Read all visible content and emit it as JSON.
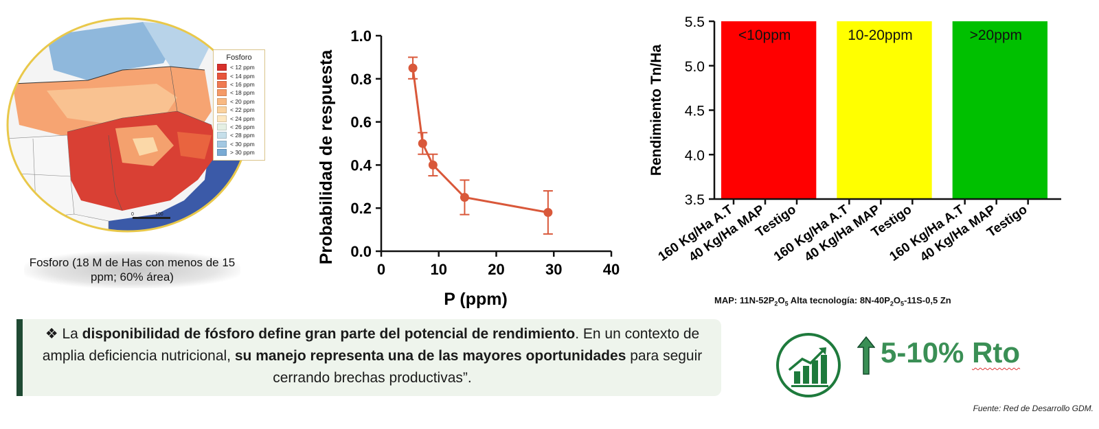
{
  "map": {
    "legend_title": "Fosforo",
    "legend": [
      {
        "label": "< 12 ppm",
        "color": "#d7302b"
      },
      {
        "label": "< 14 ppm",
        "color": "#e8553b"
      },
      {
        "label": "< 16 ppm",
        "color": "#f07a52"
      },
      {
        "label": "< 18 ppm",
        "color": "#f59a67"
      },
      {
        "label": "< 20 ppm",
        "color": "#f9b982"
      },
      {
        "label": "< 22 ppm",
        "color": "#fbd29e"
      },
      {
        "label": "< 24 ppm",
        "color": "#fde7c0"
      },
      {
        "label": "< 26 ppm",
        "color": "#e5f0e4"
      },
      {
        "label": "< 28 ppm",
        "color": "#c6dfea"
      },
      {
        "label": "< 30 ppm",
        "color": "#a3c8e2"
      },
      {
        "label": "> 30 ppm",
        "color": "#79abd4"
      }
    ],
    "scale_labels": [
      "0",
      "100"
    ],
    "caption": "Fosforo (18 M de Has con menos de 15 ppm; 60% área)"
  },
  "chart_data": [
    {
      "type": "line",
      "xlabel": "P (ppm)",
      "ylabel": "Probabilidad de respuesta",
      "xlim": [
        0,
        40
      ],
      "ylim": [
        0,
        1.0
      ],
      "x_ticks": [
        "0",
        "10",
        "20",
        "30",
        "40"
      ],
      "y_ticks": [
        "0.0",
        "0.2",
        "0.4",
        "0.6",
        "0.8",
        "1.0"
      ],
      "series": [
        {
          "color": "#d9583a",
          "x": [
            5.5,
            7.2,
            9.0,
            14.5,
            29.0
          ],
          "y": [
            0.85,
            0.5,
            0.4,
            0.25,
            0.18
          ],
          "err_low": [
            0.8,
            0.45,
            0.35,
            0.17,
            0.08
          ],
          "err_high": [
            0.9,
            0.55,
            0.45,
            0.33,
            0.28
          ]
        }
      ]
    },
    {
      "type": "bar",
      "ylabel": "Rendimiento Tn/Ha",
      "ylim": [
        3.5,
        5.5
      ],
      "y_ticks": [
        "3.5",
        "4.0",
        "4.5",
        "5.0",
        "5.5"
      ],
      "categories": [
        "160 Kg/Ha A.T",
        "40 Kg/Ha MAP",
        "Testigo",
        "160 Kg/Ha A.T",
        "40 Kg/Ha MAP",
        "Testigo",
        "160 Kg/Ha A.T",
        "40 Kg/Ha MAP",
        "Testigo"
      ],
      "groups": [
        {
          "label": "<10ppm",
          "color": "#ff0000",
          "value": 5.5
        },
        {
          "label": "10-20ppm",
          "color": "#ffff00",
          "value": 5.5
        },
        {
          "label": ">20ppm",
          "color": "#00c000",
          "value": 5.5
        }
      ]
    }
  ],
  "footnote": {
    "map_label": "MAP: 11N-52P",
    "map_sub1": "2",
    "map_mid": "O",
    "map_sub2": "5",
    "at_label": " Alta tecnología: 8N-40P",
    "at_sub1": "2",
    "at_mid": "O",
    "at_sub2": "5",
    "at_tail": "-11S-0,5 Zn"
  },
  "callout": {
    "bullet": "❖",
    "t1": " La ",
    "b1": "disponibilidad de fósforo define gran parte del potencial de rendimiento",
    "t2": ". En un contexto de amplia deficiencia nutricional, ",
    "b2": "su manejo representa una de las mayores oportunidades",
    "t3": " para seguir cerrando brechas productivas”."
  },
  "highlight": {
    "value": "5-10%",
    "unit": "Rto",
    "accent": "#3a8f55",
    "icon_color": "#1e7a3c"
  },
  "source": "Fuente: Red de Desarrollo GDM."
}
